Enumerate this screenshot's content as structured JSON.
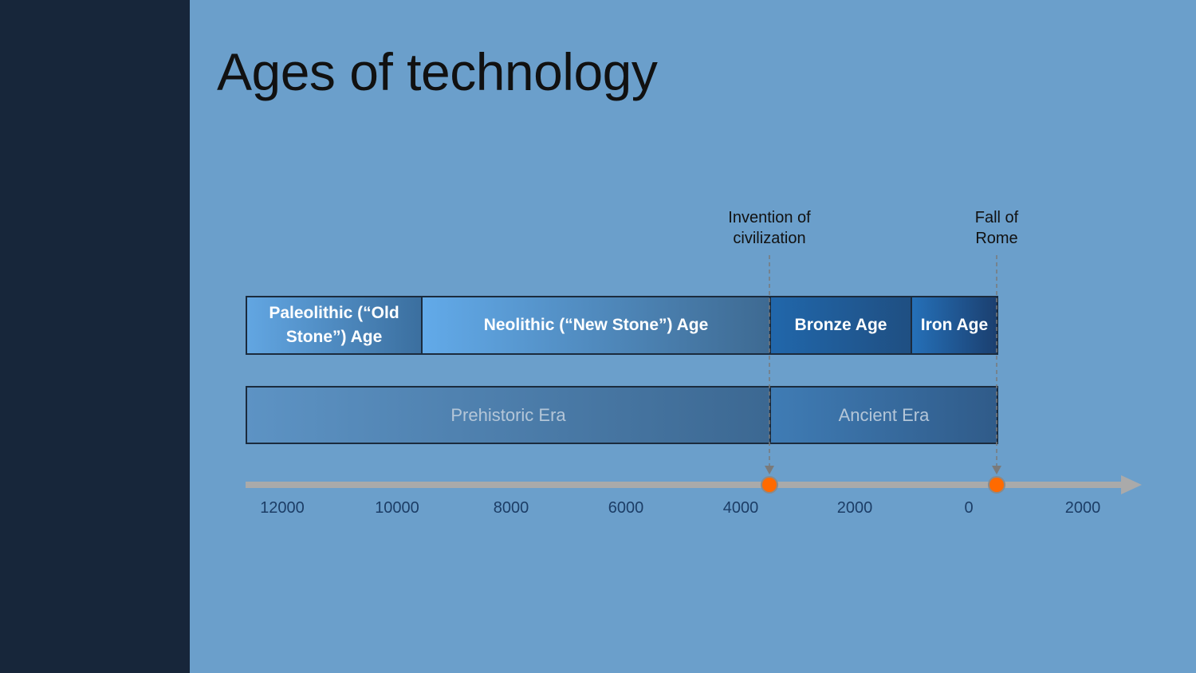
{
  "title": "Ages of technology",
  "ages": [
    {
      "label": "Paleolithic (“Old Stone”) Age"
    },
    {
      "label": "Neolithic (“New Stone”) Age"
    },
    {
      "label": "Bronze Age"
    },
    {
      "label": "Iron Age"
    }
  ],
  "eras": [
    {
      "label": "Prehistoric Era"
    },
    {
      "label": "Ancient Era"
    }
  ],
  "events": [
    {
      "label": "Invention of civilization"
    },
    {
      "label": "Fall of Rome"
    }
  ],
  "axis": {
    "ticks": [
      "12000",
      "10000",
      "8000",
      "6000",
      "4000",
      "2000",
      "0",
      "2000"
    ]
  }
}
